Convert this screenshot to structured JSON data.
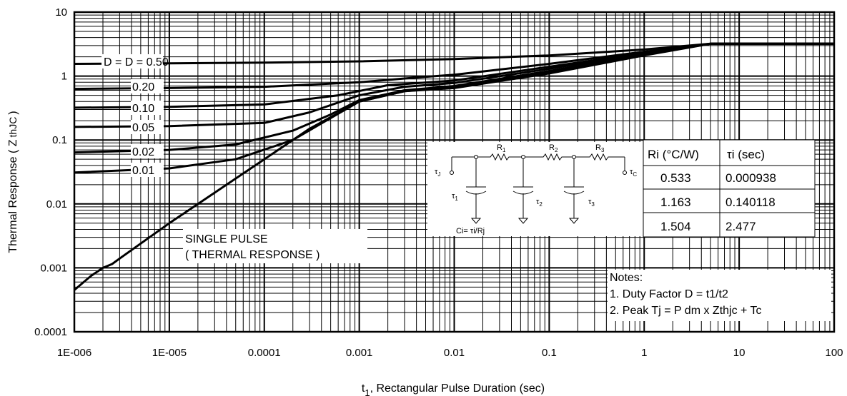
{
  "chart_data": {
    "type": "line",
    "xlabel": "t",
    "xlabel_sub": "1",
    "xlabel_rest": ", Rectangular Pulse Duration (sec)",
    "ylabel": "Thermal Response ( Z",
    "ylabel_sub": "thJC",
    "ylabel_close": ")",
    "xscale": "log",
    "yscale": "log",
    "xlim": [
      1e-06,
      100
    ],
    "ylim": [
      0.0001,
      10
    ],
    "grid": true,
    "x_tick_labels": [
      "1E-006",
      "1E-005",
      "0.0001",
      "0.001",
      "0.01",
      "0.1",
      "1",
      "10",
      "100"
    ],
    "y_tick_labels": [
      "0.0001",
      "0.001",
      "0.01",
      "0.1",
      "1",
      "10"
    ],
    "series": [
      {
        "name": "D = 0.50",
        "x": [
          1e-06,
          1e-05,
          0.0001,
          0.001,
          0.01,
          0.1,
          1,
          5,
          100
        ],
        "values": [
          1.55,
          1.58,
          1.62,
          1.7,
          1.85,
          2.1,
          2.6,
          3.2,
          3.2
        ]
      },
      {
        "name": "0.20",
        "x": [
          1e-06,
          1e-05,
          0.0001,
          0.001,
          0.004,
          0.01,
          0.1,
          1,
          5,
          100
        ],
        "values": [
          0.63,
          0.65,
          0.68,
          0.8,
          0.95,
          1.05,
          1.55,
          2.4,
          3.2,
          3.2
        ]
      },
      {
        "name": "0.10",
        "x": [
          1e-06,
          1e-05,
          0.0001,
          0.0006,
          0.002,
          0.01,
          0.1,
          1,
          5,
          100
        ],
        "values": [
          0.32,
          0.33,
          0.36,
          0.5,
          0.72,
          0.85,
          1.4,
          2.3,
          3.2,
          3.2
        ]
      },
      {
        "name": "0.05",
        "x": [
          1e-06,
          1e-05,
          0.0001,
          0.0003,
          0.001,
          0.003,
          0.01,
          0.1,
          1,
          5,
          100
        ],
        "values": [
          0.16,
          0.165,
          0.185,
          0.27,
          0.5,
          0.68,
          0.78,
          1.3,
          2.3,
          3.2,
          3.2
        ]
      },
      {
        "name": "0.02",
        "x": [
          1e-06,
          1e-05,
          5e-05,
          0.0002,
          0.0005,
          0.001,
          0.003,
          0.01,
          0.1,
          1,
          5,
          100
        ],
        "values": [
          0.064,
          0.07,
          0.085,
          0.14,
          0.25,
          0.42,
          0.6,
          0.7,
          1.2,
          2.2,
          3.2,
          3.2
        ]
      },
      {
        "name": "0.01",
        "x": [
          1e-06,
          1e-05,
          5e-05,
          0.0002,
          0.0005,
          0.001,
          0.003,
          0.01,
          0.1,
          1,
          5,
          100
        ],
        "values": [
          0.031,
          0.036,
          0.05,
          0.1,
          0.22,
          0.4,
          0.58,
          0.67,
          1.15,
          2.15,
          3.2,
          3.2
        ]
      },
      {
        "name": "SINGLE PULSE",
        "x": [
          1e-06,
          1.5e-06,
          2e-06,
          2.5e-06,
          3e-06,
          1e-05,
          0.0001,
          0.0003,
          0.001,
          0.003,
          0.01,
          0.1,
          1,
          5,
          100
        ],
        "values": [
          0.00045,
          0.00075,
          0.001,
          0.00115,
          0.0014,
          0.005,
          0.05,
          0.15,
          0.4,
          0.58,
          0.65,
          1.1,
          2.1,
          3.2,
          3.2
        ]
      }
    ],
    "curve_label_prefix": "D = ",
    "single_pulse_label": [
      "SINGLE PULSE",
      "( THERMAL RESPONSE )"
    ],
    "notes": [
      "Notes:",
      "1. Duty Factor D = t1/t2",
      "2. Peak Tj = P dm x Zthjc + Tc"
    ],
    "rc_table": {
      "headers": [
        "Ri (°C/W)",
        "τi (sec)"
      ],
      "rows": [
        [
          "0.533",
          "0.000938"
        ],
        [
          "1.163",
          "0.140118"
        ],
        [
          "1.504",
          "2.477"
        ]
      ]
    },
    "circuit": {
      "node_left": "τ",
      "node_left_sub": "J",
      "node_right": "τ",
      "node_right_sub": "C",
      "resistors": [
        [
          "R",
          "1"
        ],
        [
          "R",
          "2"
        ],
        [
          "R",
          "3"
        ]
      ],
      "taus": [
        [
          "τ",
          "1"
        ],
        [
          "τ",
          "2"
        ],
        [
          "τ",
          "3"
        ]
      ],
      "formula": "Ci= τi/Rj"
    }
  }
}
